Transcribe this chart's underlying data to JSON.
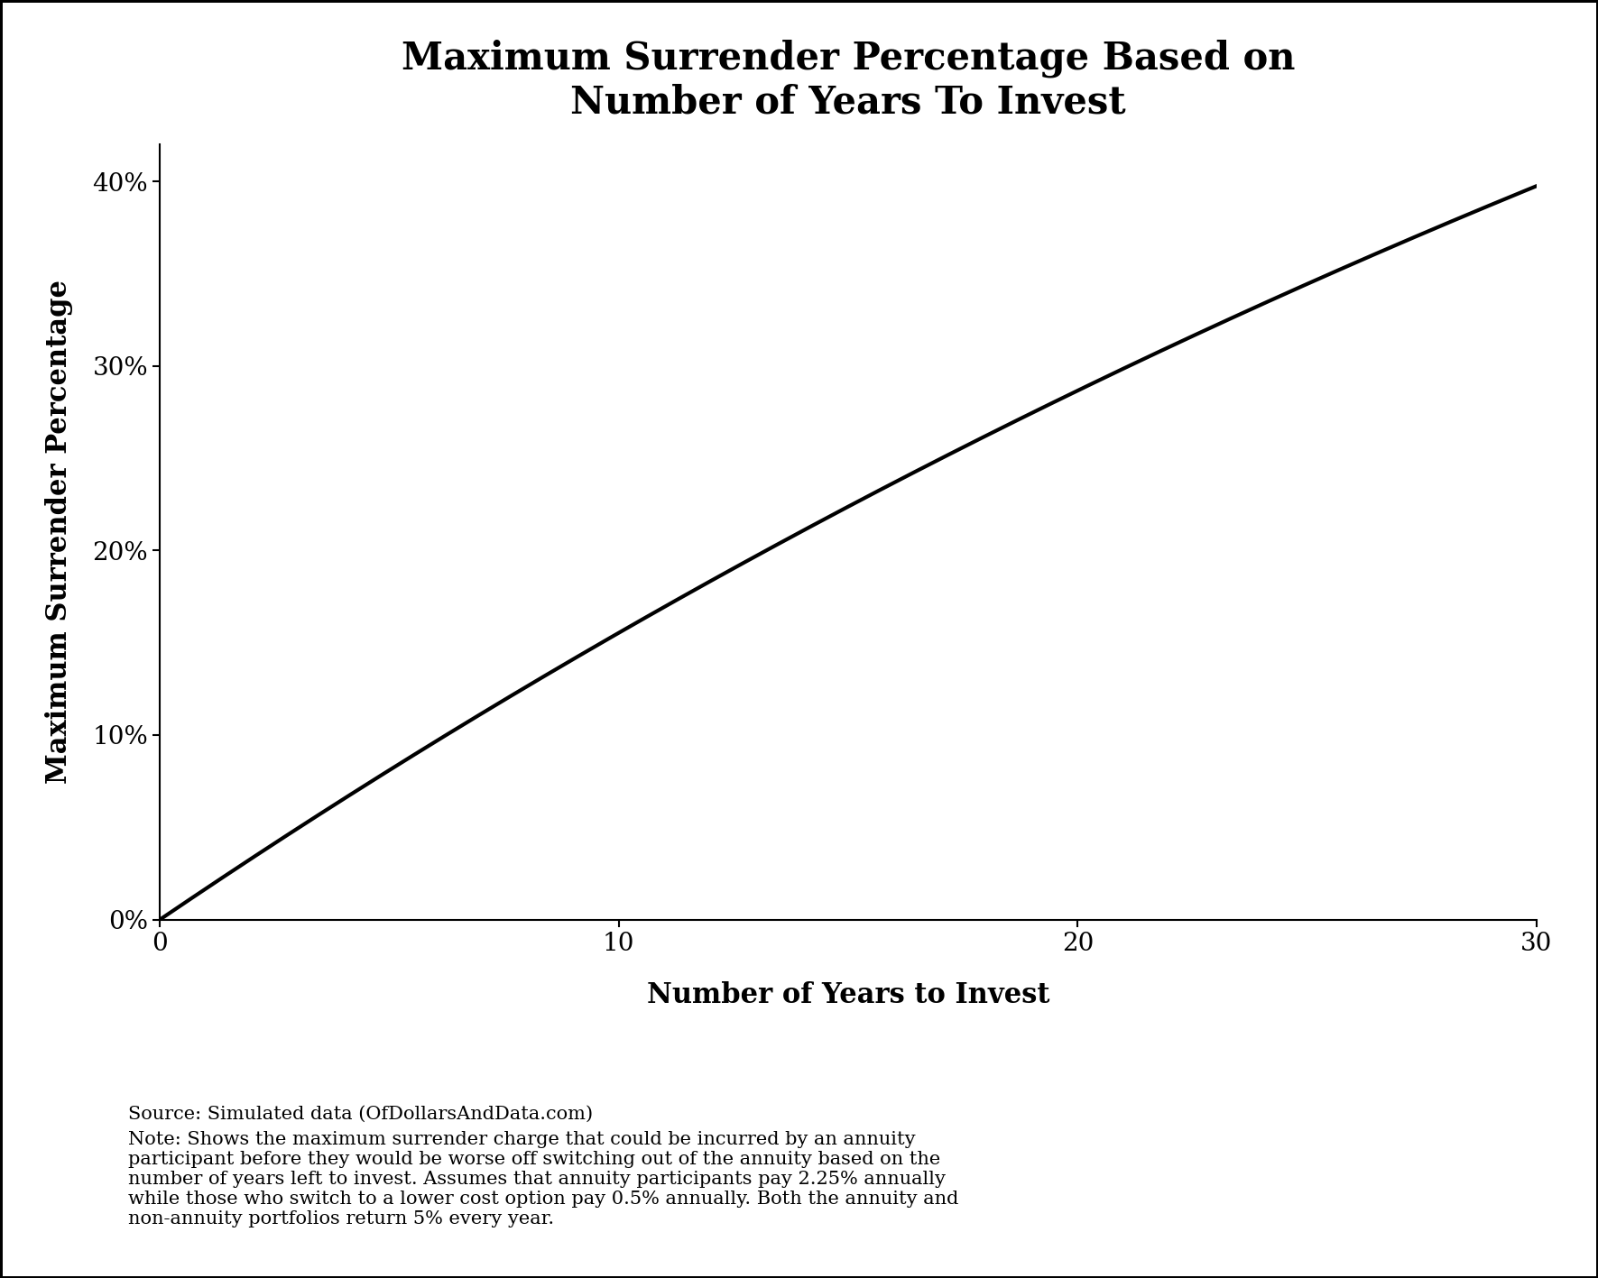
{
  "title": "Maximum Surrender Percentage Based on\nNumber of Years To Invest",
  "xlabel": "Number of Years to Invest",
  "ylabel": "Maximum Surrender Percentage",
  "annuity_cost": 0.0225,
  "alt_cost": 0.005,
  "return_rate": 0.05,
  "x_min": 0,
  "x_max": 30,
  "y_min": 0.0,
  "y_max": 0.42,
  "x_ticks": [
    0,
    10,
    20,
    30
  ],
  "y_ticks": [
    0.0,
    0.1,
    0.2,
    0.3,
    0.4
  ],
  "line_color": "#000000",
  "line_width": 3.0,
  "background_color": "#ffffff",
  "title_fontsize": 30,
  "label_fontsize": 22,
  "tick_fontsize": 20,
  "note_fontsize": 15,
  "source_text": "Source: Simulated data (OfDollarsAndData.com)",
  "note_text": "Note: Shows the maximum surrender charge that could be incurred by an annuity\nparticipant before they would be worse off switching out of the annuity based on the\nnumber of years left to invest. Assumes that annuity participants pay 2.25% annually\nwhile those who switch to a lower cost option pay 0.5% annually. Both the annuity and\nnon-annuity portfolios return 5% every year.",
  "border_color": "#000000",
  "border_width": 2.5
}
